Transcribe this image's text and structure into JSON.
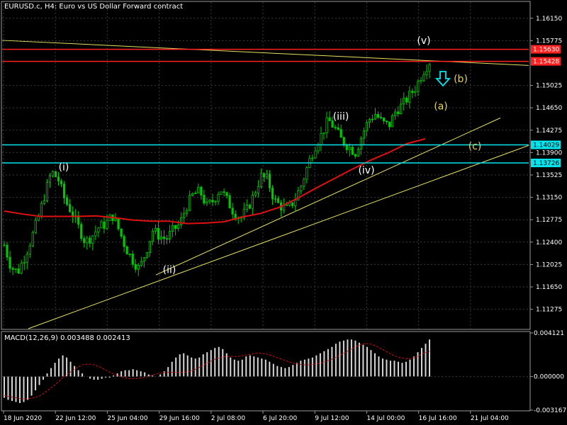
{
  "window": {
    "symbol_title": "EURUSD.c, H4:  Euro vs US Dollar Forward contract",
    "macd_title": "MACD(12,26,9) 0.003488 0.002413"
  },
  "colors": {
    "background": "#000000",
    "grid": "#3a3a3a",
    "bull_candle": "#00c800",
    "bear_candle": "#00c800",
    "ma_line": "#e01010",
    "resistance_line": "#ff2020",
    "support_line": "#00e5ee",
    "trend_line": "#e6e060",
    "macd_hist": "#d8d8d8",
    "macd_signal": "#d01010",
    "arrow": "#00e5ee"
  },
  "chart_data": {
    "type": "candlestick",
    "price_axis": {
      "range": [
        1.1095,
        1.1642
      ],
      "ticks": [
        "1.16150",
        "1.15775",
        "1.15025",
        "1.14650",
        "1.14275",
        "1.13900",
        "1.13525",
        "1.13150",
        "1.12775",
        "1.12400",
        "1.12025",
        "1.11650",
        "1.11275"
      ]
    },
    "time_axis": {
      "labels": [
        "18 Jun 2020",
        "22 Jun 12:00",
        "25 Jun 04:00",
        "29 Jun 16:00",
        "2 Jul 08:00",
        "6 Jul 20:00",
        "9 Jul 12:00",
        "14 Jul 00:00",
        "16 Jul 16:00",
        "21 Jul 04:00"
      ]
    },
    "horizontal_levels": [
      {
        "kind": "resistance",
        "label": "1.15630",
        "value": 1.1563
      },
      {
        "kind": "resistance",
        "label": "1.15428",
        "value": 1.15428
      },
      {
        "kind": "support",
        "label": "1.14029",
        "value": 1.14029
      },
      {
        "kind": "support",
        "label": "1.13726",
        "value": 1.13726
      }
    ],
    "close_path": [
      1.1235,
      1.1198,
      1.119,
      1.1215,
      1.1245,
      1.128,
      1.132,
      1.1358,
      1.1345,
      1.131,
      1.129,
      1.1265,
      1.124,
      1.125,
      1.1265,
      1.127,
      1.1285,
      1.126,
      1.123,
      1.121,
      1.1195,
      1.1225,
      1.126,
      1.125,
      1.1245,
      1.126,
      1.127,
      1.13,
      1.132,
      1.1325,
      1.13,
      1.131,
      1.133,
      1.131,
      1.129,
      1.128,
      1.1295,
      1.132,
      1.135,
      1.1345,
      1.131,
      1.13,
      1.1295,
      1.131,
      1.1335,
      1.137,
      1.14,
      1.142,
      1.1445,
      1.143,
      1.141,
      1.14,
      1.139,
      1.142,
      1.1445,
      1.1455,
      1.144,
      1.1435,
      1.146,
      1.147,
      1.1485,
      1.15,
      1.1525,
      1.1542
    ],
    "moving_average": [
      1.1292,
      1.1287,
      1.1283,
      1.1283,
      1.1283,
      1.1284,
      1.1281,
      1.1277,
      1.1275,
      1.1275,
      1.1271,
      1.1272,
      1.1274,
      1.1282,
      1.1288,
      1.1298,
      1.1313,
      1.133,
      1.1346,
      1.1362,
      1.1377,
      1.139,
      1.1405,
      1.1413
    ],
    "wave_labels": [
      {
        "text": "(i)",
        "color": "white",
        "price": 1.136
      },
      {
        "text": "(ii)",
        "color": "white",
        "price": 1.1188
      },
      {
        "text": "(iii)",
        "color": "white",
        "price": 1.1445
      },
      {
        "text": "(iv)",
        "color": "white",
        "price": 1.1355
      },
      {
        "text": "(v)",
        "color": "white",
        "price": 1.1572
      },
      {
        "text": "(a)",
        "color": "yellow",
        "price": 1.1462
      },
      {
        "text": "(b)",
        "color": "yellow",
        "price": 1.1508
      },
      {
        "text": "(c)",
        "color": "yellow",
        "price": 1.1395
      }
    ],
    "macd": {
      "range": [
        -0.003167,
        0.004121
      ],
      "ticks": [
        "0.004121",
        "0.000000",
        "-0.003167"
      ],
      "histogram": [
        -0.002,
        -0.0022,
        -0.0023,
        -0.0024,
        -0.0025,
        -0.0024,
        -0.0022,
        -0.0018,
        -0.0013,
        -0.0008,
        -0.0003,
        0.0003,
        0.0008,
        0.0013,
        0.0017,
        0.002,
        0.0018,
        0.0014,
        0.001,
        0.0006,
        0.0003,
        0.0,
        -0.0002,
        -0.0003,
        -0.0003,
        -0.0002,
        -0.0001,
        -0.0001,
        0.0001,
        0.0003,
        0.0005,
        0.0006,
        0.0006,
        0.0007,
        0.0006,
        0.0005,
        0.0004,
        0.0002,
        0.0001,
        0.0,
        0.0002,
        0.0005,
        0.0009,
        0.0014,
        0.0018,
        0.0021,
        0.0022,
        0.002,
        0.0018,
        0.0017,
        0.0018,
        0.0021,
        0.0023,
        0.0025,
        0.0027,
        0.0028,
        0.0026,
        0.0022,
        0.0018,
        0.0016,
        0.0015,
        0.0016,
        0.0019,
        0.002,
        0.0019,
        0.0018,
        0.0017,
        0.0016,
        0.0014,
        0.0012,
        0.001,
        0.0009,
        0.0008,
        0.0009,
        0.0011,
        0.0013,
        0.0015,
        0.0016,
        0.0017,
        0.0018,
        0.002,
        0.0022,
        0.0024,
        0.0026,
        0.0028,
        0.0031,
        0.0033,
        0.0034,
        0.0035,
        0.0035,
        0.0034,
        0.0032,
        0.003,
        0.0028,
        0.0025,
        0.0022,
        0.0019,
        0.0017,
        0.0016,
        0.0015,
        0.0015,
        0.0014,
        0.0013,
        0.0014,
        0.0016,
        0.0019,
        0.0023,
        0.0027,
        0.0031,
        0.0035
      ],
      "signal": [
        -0.0018,
        -0.0019,
        -0.002,
        -0.0021,
        -0.0021,
        -0.002,
        -0.0018,
        -0.0014,
        -0.001,
        -0.0005,
        0.0,
        0.0004,
        0.0008,
        0.0011,
        0.0012,
        0.0011,
        0.0009,
        0.0006,
        0.0003,
        0.0001,
        -0.0001,
        -0.0002,
        -0.0002,
        -0.0001,
        0.0,
        0.0002,
        0.0003,
        0.0004,
        0.0004,
        0.0004,
        0.0004,
        0.0005,
        0.0007,
        0.001,
        0.0013,
        0.0016,
        0.0018,
        0.0019,
        0.0019,
        0.0019,
        0.002,
        0.0021,
        0.0022,
        0.0022,
        0.0021,
        0.0019,
        0.0017,
        0.0015,
        0.0013,
        0.0012,
        0.0011,
        0.0011,
        0.0012,
        0.0013,
        0.0015,
        0.0017,
        0.002,
        0.0023,
        0.0026,
        0.0029,
        0.0031,
        0.0031,
        0.0029,
        0.0026,
        0.0023,
        0.002,
        0.0018,
        0.0017,
        0.0017,
        0.0019,
        0.0022,
        0.0024
      ]
    }
  }
}
